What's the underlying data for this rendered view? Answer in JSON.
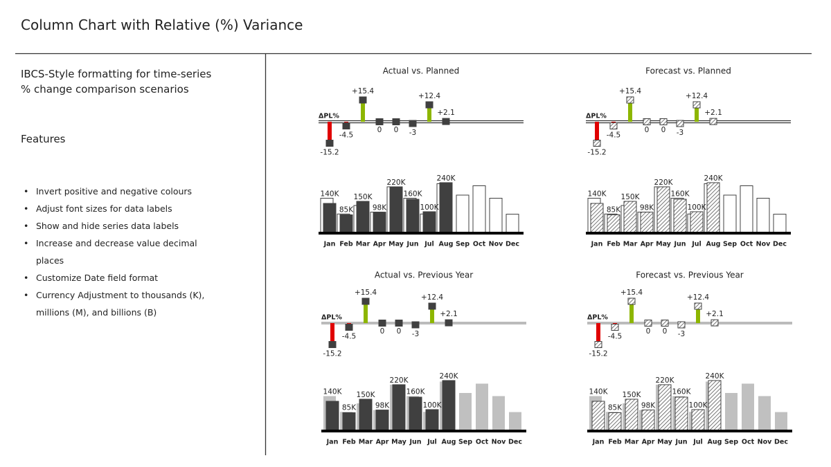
{
  "header": {
    "title": "Column Chart with Relative (%) Variance"
  },
  "sidebar": {
    "subtitle_lines": [
      "IBCS-Style formatting for time-series",
      "% change comparison scenarios"
    ],
    "features_heading": "Features",
    "features": [
      "Invert positive and negative colours",
      "Adjust font sizes for data labels",
      "Show and hide series data labels",
      "Increase and decrease value decimal places",
      "Customize Date field format",
      "Currency Adjustment to thousands (K), millions (M), and billions (B)"
    ]
  },
  "chart_data": [
    {
      "type": "variance-column",
      "title": "Actual vs. Planned",
      "categories": [
        "Jan",
        "Feb",
        "Mar",
        "Apr",
        "May",
        "Jun",
        "Jul",
        "Aug",
        "Sep",
        "Oct",
        "Nov",
        "Dec"
      ],
      "variance": {
        "label": "ΔPL%",
        "values": [
          -15.2,
          -4.5,
          15.4,
          0,
          0,
          -3,
          12.4,
          2.1,
          null,
          null,
          null,
          null
        ],
        "value_labels": [
          "-15.2",
          "-4.5",
          "+15.4",
          "0",
          "0",
          "-3",
          "+12.4",
          "+2.1",
          null,
          null,
          null,
          null
        ],
        "positive_color": "#8db600",
        "negative_color": "#e00000",
        "head_fill": "#404040",
        "axis_style": "double"
      },
      "series": [
        {
          "role": "comparison",
          "fill": "#ffffff",
          "stroke": "#404040",
          "values": [
            165000,
            89000,
            130000,
            98000,
            220000,
            165000,
            89000,
            235000,
            180000,
            225000,
            165000,
            88000
          ]
        },
        {
          "role": "actual",
          "fill": "#404040",
          "stroke": "#404040",
          "values": [
            140000,
            85000,
            150000,
            98000,
            220000,
            160000,
            100000,
            240000,
            null,
            null,
            null,
            null
          ],
          "value_labels": [
            "140K",
            "85K",
            "150K",
            "98K",
            "220K",
            "160K",
            "100K",
            "240K",
            null,
            null,
            null,
            null
          ]
        }
      ]
    },
    {
      "type": "variance-column",
      "title": "Forecast vs. Planned",
      "categories": [
        "Jan",
        "Feb",
        "Mar",
        "Apr",
        "May",
        "Jun",
        "Jul",
        "Aug",
        "Sep",
        "Oct",
        "Nov",
        "Dec"
      ],
      "variance": {
        "label": "ΔPL%",
        "values": [
          -15.2,
          -4.5,
          15.4,
          0,
          0,
          -3,
          12.4,
          2.1,
          null,
          null,
          null,
          null
        ],
        "value_labels": [
          "-15.2",
          "-4.5",
          "+15.4",
          "0",
          "0",
          "-3",
          "+12.4",
          "+2.1",
          null,
          null,
          null,
          null
        ],
        "positive_color": "#8db600",
        "negative_color": "#e00000",
        "head_fill": "hatch",
        "axis_style": "double"
      },
      "series": [
        {
          "role": "comparison",
          "fill": "#ffffff",
          "stroke": "#404040",
          "values": [
            165000,
            89000,
            130000,
            98000,
            220000,
            165000,
            89000,
            235000,
            180000,
            225000,
            165000,
            88000
          ]
        },
        {
          "role": "actual",
          "fill": "hatch",
          "stroke": "#404040",
          "values": [
            140000,
            85000,
            150000,
            98000,
            220000,
            160000,
            100000,
            240000,
            null,
            null,
            null,
            null
          ],
          "value_labels": [
            "140K",
            "85K",
            "150K",
            "98K",
            "220K",
            "160K",
            "100K",
            "240K",
            null,
            null,
            null,
            null
          ]
        }
      ]
    },
    {
      "type": "variance-column",
      "title": "Actual vs. Previous Year",
      "categories": [
        "Jan",
        "Feb",
        "Mar",
        "Apr",
        "May",
        "Jun",
        "Jul",
        "Aug",
        "Sep",
        "Oct",
        "Nov",
        "Dec"
      ],
      "variance": {
        "label": "ΔPL%",
        "values": [
          -15.2,
          -4.5,
          15.4,
          0,
          0,
          -3,
          12.4,
          2.1,
          null,
          null,
          null,
          null
        ],
        "value_labels": [
          "-15.2",
          "-4.5",
          "+15.4",
          "0",
          "0",
          "-3",
          "+12.4",
          "+2.1",
          null,
          null,
          null,
          null
        ],
        "positive_color": "#8db600",
        "negative_color": "#e00000",
        "head_fill": "#404040",
        "axis_style": "gray"
      },
      "series": [
        {
          "role": "comparison",
          "fill": "#c0c0c0",
          "stroke": "none",
          "values": [
            165000,
            89000,
            130000,
            98000,
            220000,
            165000,
            89000,
            235000,
            180000,
            225000,
            165000,
            88000
          ]
        },
        {
          "role": "actual",
          "fill": "#404040",
          "stroke": "#404040",
          "values": [
            140000,
            85000,
            150000,
            98000,
            220000,
            160000,
            100000,
            240000,
            null,
            null,
            null,
            null
          ],
          "value_labels": [
            "140K",
            "85K",
            "150K",
            "98K",
            "220K",
            "160K",
            "100K",
            "240K",
            null,
            null,
            null,
            null
          ]
        }
      ]
    },
    {
      "type": "variance-column",
      "title": "Forecast vs. Previous Year",
      "categories": [
        "Jan",
        "Feb",
        "Mar",
        "Apr",
        "May",
        "Jun",
        "Jul",
        "Aug",
        "Sep",
        "Oct",
        "Nov",
        "Dec"
      ],
      "variance": {
        "label": "ΔPL%",
        "values": [
          -15.2,
          -4.5,
          15.4,
          0,
          0,
          -3,
          12.4,
          2.1,
          null,
          null,
          null,
          null
        ],
        "value_labels": [
          "-15.2",
          "-4.5",
          "+15.4",
          "0",
          "0",
          "-3",
          "+12.4",
          "+2.1",
          null,
          null,
          null,
          null
        ],
        "positive_color": "#8db600",
        "negative_color": "#e00000",
        "head_fill": "hatch",
        "axis_style": "gray"
      },
      "series": [
        {
          "role": "comparison",
          "fill": "#c0c0c0",
          "stroke": "none",
          "values": [
            165000,
            89000,
            130000,
            98000,
            220000,
            165000,
            89000,
            235000,
            180000,
            225000,
            165000,
            88000
          ]
        },
        {
          "role": "actual",
          "fill": "hatch",
          "stroke": "#404040",
          "values": [
            140000,
            85000,
            150000,
            98000,
            220000,
            160000,
            100000,
            240000,
            null,
            null,
            null,
            null
          ],
          "value_labels": [
            "140K",
            "85K",
            "150K",
            "98K",
            "220K",
            "160K",
            "100K",
            "240K",
            null,
            null,
            null,
            null
          ]
        }
      ]
    }
  ]
}
